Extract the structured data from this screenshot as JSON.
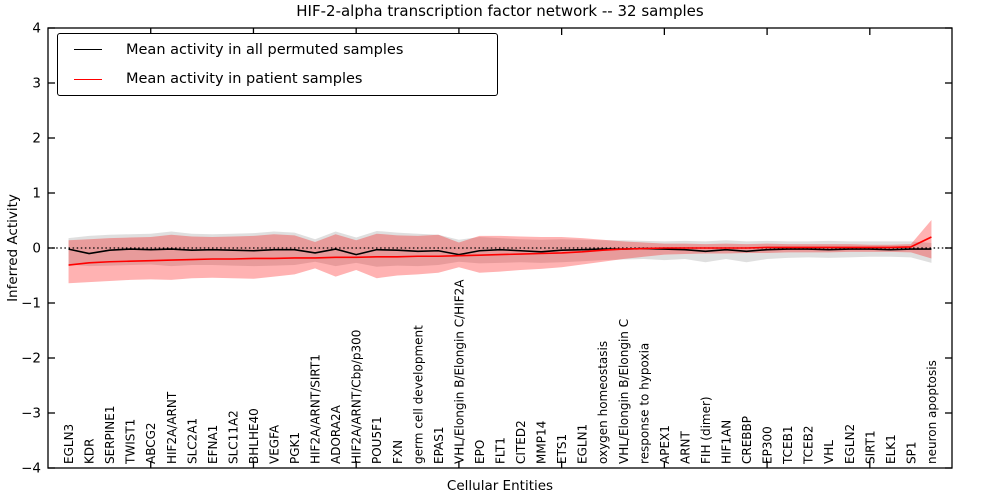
{
  "figure": {
    "title": "HIF-2-alpha transcription factor network -- 32 samples",
    "x_axis_title": "Cellular Entities",
    "y_axis_title": "Inferred Activity"
  },
  "legend": {
    "items": [
      {
        "label": "Mean activity in all permuted samples",
        "color": "#000000"
      },
      {
        "label": "Mean activity in patient samples",
        "color": "#ff0000"
      }
    ]
  },
  "chart_data": {
    "type": "line",
    "title": "HIF-2-alpha transcription factor network -- 32 samples",
    "xlabel": "Cellular Entities",
    "ylabel": "Inferred Activity",
    "ylim": [
      -4,
      4
    ],
    "yticks": [
      4,
      3,
      2,
      1,
      0,
      -1,
      -2,
      -3,
      -4
    ],
    "xlim": [
      0,
      44
    ],
    "xticks": [
      5,
      10,
      15,
      20,
      25,
      30,
      35,
      40
    ],
    "grid": false,
    "zero_reference_line": {
      "style": "dotted",
      "color": "#000000",
      "y": 0
    },
    "legend_position": "upper-left",
    "categories": [
      "EGLN3",
      "KDR",
      "SERPINE1",
      "TWIST1",
      "ABCG2",
      "HIF2A/ARNT",
      "SLC2A1",
      "EFNA1",
      "SLC11A2",
      "BHLHE40",
      "VEGFA",
      "PGK1",
      "HIF2A/ARNT/SIRT1",
      "ADORA2A",
      "HIF2A/ARNT/Cbp/p300",
      "POU5F1",
      "FXN",
      "germ cell development",
      "EPAS1",
      "VHL/Elongin B/Elongin C/HIF2A",
      "EPO",
      "FLT1",
      "CITED2",
      "MMP14",
      "ETS1",
      "EGLN1",
      "oxygen homeostasis",
      "VHL/Elongin B/Elongin C",
      "response to hypoxia",
      "APEX1",
      "ARNT",
      "FIH (dimer)",
      "HIF1AN",
      "CREBBP",
      "EP300",
      "TCEB1",
      "TCEB2",
      "VHL",
      "EGLN2",
      "SIRT1",
      "ELK1",
      "SP1",
      "neuron apoptosis"
    ],
    "series": [
      {
        "name": "Mean activity in all permuted samples",
        "color": "#000000",
        "values": [
          -0.02,
          -0.1,
          -0.04,
          -0.02,
          -0.03,
          -0.02,
          -0.04,
          -0.03,
          -0.04,
          -0.05,
          -0.03,
          -0.03,
          -0.09,
          -0.02,
          -0.12,
          -0.03,
          -0.04,
          -0.06,
          -0.05,
          -0.12,
          -0.05,
          -0.03,
          -0.05,
          -0.07,
          -0.04,
          -0.03,
          -0.02,
          -0.02,
          -0.01,
          -0.02,
          -0.03,
          -0.06,
          -0.03,
          -0.06,
          -0.03,
          -0.02,
          -0.02,
          -0.03,
          -0.02,
          -0.02,
          -0.03,
          -0.02,
          -0.02
        ]
      },
      {
        "name": "Mean activity in patient samples",
        "color": "#ff0000",
        "values": [
          -0.31,
          -0.27,
          -0.25,
          -0.24,
          -0.23,
          -0.22,
          -0.21,
          -0.2,
          -0.2,
          -0.19,
          -0.19,
          -0.18,
          -0.18,
          -0.17,
          -0.17,
          -0.16,
          -0.16,
          -0.15,
          -0.15,
          -0.14,
          -0.13,
          -0.12,
          -0.11,
          -0.1,
          -0.09,
          -0.07,
          -0.04,
          -0.02,
          -0.01,
          0.0,
          0.0,
          0.0,
          0.0,
          0.0,
          0.01,
          0.01,
          0.01,
          0.01,
          0.01,
          0.01,
          0.01,
          0.02,
          0.2
        ]
      }
    ],
    "bands": [
      {
        "name": "permuted-samples-range",
        "color": "#808080",
        "opacity": 0.25,
        "upper": [
          0.18,
          0.22,
          0.24,
          0.25,
          0.26,
          0.3,
          0.26,
          0.25,
          0.26,
          0.27,
          0.3,
          0.28,
          0.16,
          0.3,
          0.19,
          0.31,
          0.28,
          0.26,
          0.24,
          0.15,
          0.2,
          0.18,
          0.16,
          0.15,
          0.16,
          0.15,
          0.14,
          0.14,
          0.13,
          0.12,
          0.13,
          0.12,
          0.14,
          0.12,
          0.13,
          0.12,
          0.12,
          0.13,
          0.12,
          0.12,
          0.12,
          0.12,
          0.09
        ],
        "lower": [
          -0.3,
          -0.33,
          -0.32,
          -0.31,
          -0.3,
          -0.33,
          -0.31,
          -0.31,
          -0.32,
          -0.33,
          -0.32,
          -0.31,
          -0.25,
          -0.33,
          -0.27,
          -0.34,
          -0.32,
          -0.33,
          -0.31,
          -0.25,
          -0.28,
          -0.27,
          -0.26,
          -0.27,
          -0.26,
          -0.24,
          -0.22,
          -0.21,
          -0.2,
          -0.22,
          -0.2,
          -0.26,
          -0.2,
          -0.26,
          -0.2,
          -0.18,
          -0.17,
          -0.18,
          -0.17,
          -0.16,
          -0.16,
          -0.17,
          -0.27
        ]
      },
      {
        "name": "patient-samples-range",
        "color": "#ff0000",
        "opacity": 0.3,
        "upper": [
          0.14,
          0.16,
          0.18,
          0.19,
          0.2,
          0.24,
          0.21,
          0.2,
          0.21,
          0.22,
          0.25,
          0.23,
          0.11,
          0.25,
          0.14,
          0.26,
          0.23,
          0.22,
          0.24,
          0.1,
          0.22,
          0.22,
          0.21,
          0.2,
          0.2,
          0.18,
          0.15,
          0.12,
          0.1,
          0.08,
          0.08,
          0.07,
          0.08,
          0.07,
          0.08,
          0.07,
          0.07,
          0.07,
          0.07,
          0.06,
          0.06,
          0.07,
          0.51
        ],
        "lower": [
          -0.64,
          -0.62,
          -0.6,
          -0.58,
          -0.57,
          -0.58,
          -0.55,
          -0.54,
          -0.55,
          -0.56,
          -0.52,
          -0.48,
          -0.37,
          -0.52,
          -0.4,
          -0.55,
          -0.5,
          -0.48,
          -0.45,
          -0.35,
          -0.45,
          -0.43,
          -0.4,
          -0.38,
          -0.35,
          -0.3,
          -0.25,
          -0.2,
          -0.16,
          -0.12,
          -0.11,
          -0.1,
          -0.1,
          -0.09,
          -0.09,
          -0.08,
          -0.08,
          -0.08,
          -0.07,
          -0.07,
          -0.07,
          -0.08,
          -0.19
        ]
      }
    ]
  }
}
